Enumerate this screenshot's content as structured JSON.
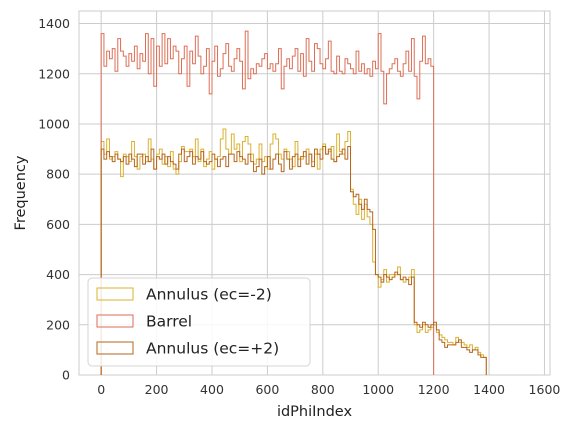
{
  "chart_data": {
    "type": "histogram-step",
    "xlabel": "idPhiIndex",
    "ylabel": "Frequency",
    "xlim": [
      -80,
      1620
    ],
    "ylim": [
      0,
      1450
    ],
    "xticks": [
      0,
      200,
      400,
      600,
      800,
      1000,
      1200,
      1400,
      1600
    ],
    "yticks": [
      0,
      200,
      400,
      600,
      800,
      1000,
      1200,
      1400
    ],
    "grid": true,
    "legend_position": "lower-left",
    "bin_width": 10,
    "series": [
      {
        "name": "Annulus (ec=-2)",
        "color": "#DAB12F",
        "x_start": 0,
        "values": [
          930,
          880,
          940,
          860,
          870,
          890,
          860,
          790,
          880,
          870,
          850,
          930,
          870,
          820,
          870,
          880,
          850,
          940,
          860,
          820,
          880,
          900,
          840,
          870,
          830,
          890,
          820,
          800,
          850,
          910,
          890,
          890,
          900,
          870,
          940,
          850,
          900,
          830,
          860,
          890,
          820,
          860,
          870,
          940,
          980,
          900,
          880,
          960,
          900,
          920,
          850,
          930,
          950,
          920,
          880,
          840,
          860,
          920,
          850,
          870,
          820,
          920,
          960,
          940,
          880,
          860,
          900,
          890,
          860,
          830,
          930,
          860,
          860,
          870,
          900,
          880,
          850,
          880,
          820,
          900,
          920,
          880,
          890,
          910,
          850,
          960,
          890,
          880,
          930,
          970,
          740,
          680,
          640,
          700,
          620,
          680,
          630,
          600,
          450,
          400,
          350,
          380,
          420,
          370,
          400,
          400,
          400,
          430,
          380,
          370,
          380,
          390,
          420,
          200,
          170,
          180,
          200,
          170,
          180,
          190,
          200,
          170,
          160,
          150,
          140,
          130,
          130,
          120,
          150,
          130,
          130,
          120,
          110,
          120,
          100,
          110,
          90,
          80,
          70
        ]
      },
      {
        "name": "Barrel",
        "color": "#DD6E55",
        "x_start": 0,
        "values": [
          1360,
          1230,
          1290,
          1260,
          1300,
          1210,
          1340,
          1290,
          1270,
          1230,
          1280,
          1250,
          1310,
          1220,
          1280,
          1250,
          1360,
          1200,
          1340,
          1150,
          1310,
          1230,
          1360,
          1240,
          1340,
          1260,
          1310,
          1290,
          1200,
          1260,
          1310,
          1150,
          1290,
          1240,
          1350,
          1270,
          1200,
          1230,
          1300,
          1120,
          1250,
          1310,
          1190,
          1220,
          1280,
          1320,
          1230,
          1210,
          1260,
          1300,
          1250,
          1140,
          1370,
          1180,
          1220,
          1200,
          1240,
          1230,
          1260,
          1280,
          1220,
          1240,
          1210,
          1240,
          1300,
          1140,
          1230,
          1260,
          1220,
          1270,
          1300,
          1210,
          1280,
          1190,
          1340,
          1250,
          1210,
          1320,
          1300,
          1240,
          1220,
          1260,
          1330,
          1210,
          1200,
          1270,
          1210,
          1200,
          1260,
          1240,
          1220,
          1200,
          1290,
          1210,
          1240,
          1200,
          1220,
          1190,
          1250,
          1220,
          1360,
          1210,
          1080,
          1200,
          1220,
          1240,
          1260,
          1210,
          1190,
          1240,
          1290,
          1210,
          1340,
          1190,
          1100,
          1250,
          1350,
          1240,
          1260,
          1230
        ]
      },
      {
        "name": "Annulus (ec=+2)",
        "color": "#B5651D",
        "x_start": 0,
        "values": [
          900,
          860,
          890,
          870,
          850,
          880,
          860,
          850,
          870,
          840,
          880,
          860,
          830,
          880,
          880,
          840,
          870,
          850,
          900,
          820,
          870,
          860,
          880,
          840,
          870,
          850,
          840,
          820,
          880,
          900,
          850,
          870,
          890,
          840,
          870,
          860,
          890,
          850,
          840,
          850,
          880,
          860,
          830,
          860,
          870,
          830,
          880,
          880,
          850,
          890,
          870,
          860,
          840,
          880,
          850,
          810,
          830,
          860,
          800,
          830,
          870,
          820,
          860,
          880,
          840,
          810,
          890,
          860,
          820,
          870,
          880,
          830,
          870,
          890,
          840,
          880,
          830,
          900,
          880,
          860,
          910,
          880,
          900,
          860,
          850,
          870,
          880,
          900,
          860,
          910,
          730,
          710,
          720,
          680,
          660,
          700,
          660,
          650,
          580,
          400,
          390,
          370,
          400,
          390,
          380,
          390,
          410,
          400,
          380,
          390,
          380,
          360,
          390,
          210,
          200,
          190,
          210,
          200,
          190,
          200,
          210,
          180,
          140,
          130,
          110,
          120,
          120,
          120,
          130,
          140,
          110,
          110,
          100,
          90,
          100,
          100,
          80,
          70,
          70
        ]
      }
    ]
  }
}
